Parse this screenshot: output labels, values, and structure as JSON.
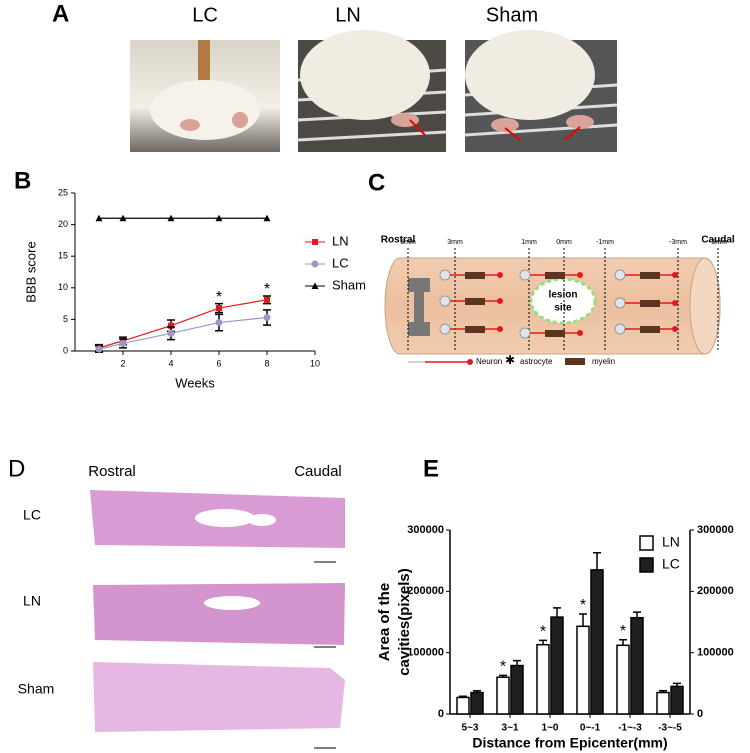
{
  "panel_labels": [
    "A",
    "B",
    "C",
    "D",
    "E"
  ],
  "photos": {
    "labels": [
      "LC",
      "LN",
      "Sham"
    ]
  },
  "diagram": {
    "rostral": "Rostral",
    "caudal": "Caudal",
    "distances": [
      "5mm",
      "3mm",
      "1mm",
      "0mm",
      "-1mm",
      "-3mm",
      "-5mm"
    ],
    "lesion": [
      "lesion",
      "site"
    ],
    "legend": [
      "Neuron",
      "astrocyte",
      "myelin"
    ]
  },
  "histology": {
    "rostral": "Rostral",
    "caudal": "Caudal",
    "rows": [
      "LC",
      "LN",
      "Sham"
    ]
  },
  "chart_data": [
    {
      "type": "line",
      "x": [
        1,
        2,
        4,
        6,
        8
      ],
      "xlim": [
        0,
        10
      ],
      "xticks": [
        2,
        4,
        6,
        8,
        10
      ],
      "ylim": [
        0,
        25
      ],
      "yticks": [
        0,
        5,
        10,
        15,
        20,
        25
      ],
      "xlabel": "Weeks",
      "ylabel": "BBB score",
      "legend": "right",
      "series": [
        {
          "name": "LN",
          "color": "#e31a1c",
          "marker": "square",
          "values": [
            0.5,
            1.6,
            4.0,
            6.8,
            8.1
          ],
          "errors": [
            0.5,
            0.6,
            0.9,
            0.7,
            0.6
          ]
        },
        {
          "name": "LC",
          "color": "#9b97c9",
          "marker": "circle",
          "values": [
            0.3,
            1.2,
            2.8,
            4.5,
            5.3
          ],
          "errors": [
            0.5,
            0.7,
            1.0,
            1.3,
            1.2
          ]
        },
        {
          "name": "Sham",
          "color": "#000000",
          "marker": "triangle",
          "values": [
            21,
            21,
            21,
            21,
            21
          ]
        }
      ],
      "annotations": [
        {
          "text": "*",
          "x": 6
        },
        {
          "text": "*",
          "x": 8
        }
      ]
    },
    {
      "type": "bar",
      "categories": [
        "5~3",
        "3~1",
        "1~0",
        "0~-1",
        "-1~-3",
        "-3~-5"
      ],
      "ylim": [
        0,
        300000
      ],
      "yticks": [
        0,
        100000,
        200000,
        300000
      ],
      "y2lim": [
        0,
        300000
      ],
      "y2ticks": [
        0,
        100000,
        200000,
        300000
      ],
      "xlabel": "Distance from Epicenter(mm)",
      "ylabel": [
        "Area of the",
        "cavities(pixels)"
      ],
      "legend": "upper right",
      "series": [
        {
          "name": "LN",
          "color": "#ffffff",
          "edgecolor": "#000000",
          "values": [
            27000,
            60000,
            113000,
            143000,
            112000,
            35000
          ],
          "errors": [
            2000,
            3000,
            7000,
            20000,
            9000,
            3000
          ]
        },
        {
          "name": "LC",
          "color": "#231f20",
          "edgecolor": "#000000",
          "values": [
            35000,
            79000,
            158000,
            235000,
            157000,
            45000
          ],
          "errors": [
            3000,
            8000,
            15000,
            28000,
            9000,
            5000
          ]
        }
      ],
      "annotations": [
        {
          "text": "*",
          "category": "3~1"
        },
        {
          "text": "*",
          "category": "1~0"
        },
        {
          "text": "*",
          "category": "0~-1"
        },
        {
          "text": "*",
          "category": "-1~-3"
        }
      ]
    }
  ]
}
